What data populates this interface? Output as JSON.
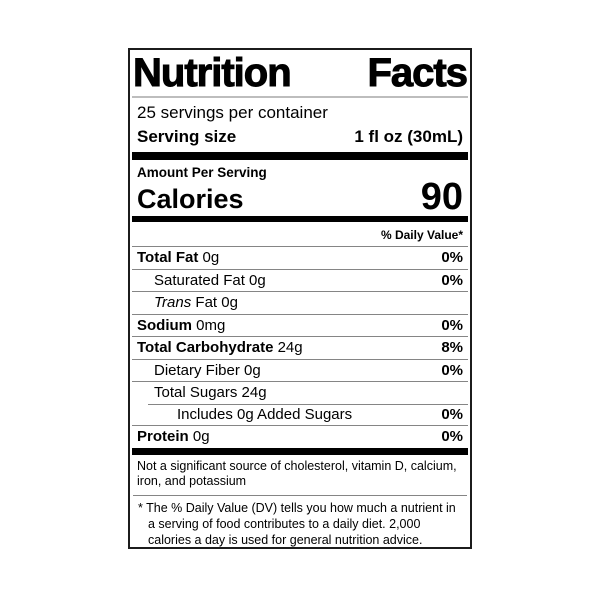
{
  "label": {
    "title": "Nutrition Facts",
    "servings_per_container": "25 servings per container",
    "serving_size_label": "Serving size",
    "serving_size_value": "1 fl oz (30mL)",
    "amount_per_serving": "Amount Per Serving",
    "calories_label": "Calories",
    "calories_value": "90",
    "daily_value_header": "% Daily Value*",
    "not_significant": "Not a significant source of cholesterol, vitamin D, calcium, iron, and potassium",
    "footnote_marker": "*",
    "footnote_text": "The % Daily Value (DV) tells you how much a nutrient in a serving of food contributes to a daily diet. 2,000 calories a day is used for general nutrition advice.",
    "colors": {
      "text": "#000000",
      "bar": "#000000",
      "separator": "#858585",
      "border": "#1c1c1c",
      "background": "#ffffff"
    }
  },
  "nutrients": [
    {
      "bold": "Total Fat",
      "italic": "",
      "text": " 0g",
      "pct": "0%",
      "indent": 0,
      "sep_indent": false
    },
    {
      "bold": "",
      "italic": "",
      "text": "Saturated Fat 0g",
      "pct": "0%",
      "indent": 1,
      "sep_indent": false
    },
    {
      "bold": "",
      "italic": "Trans",
      "text": " Fat 0g",
      "pct": "",
      "indent": 1,
      "sep_indent": false
    },
    {
      "bold": "Sodium",
      "italic": "",
      "text": " 0mg",
      "pct": "0%",
      "indent": 0,
      "sep_indent": false
    },
    {
      "bold": "Total Carbohydrate",
      "italic": "",
      "text": " 24g",
      "pct": "8%",
      "indent": 0,
      "sep_indent": false
    },
    {
      "bold": "",
      "italic": "",
      "text": "Dietary Fiber 0g",
      "pct": "0%",
      "indent": 1,
      "sep_indent": false
    },
    {
      "bold": "",
      "italic": "",
      "text": "Total Sugars 24g",
      "pct": "",
      "indent": 1,
      "sep_indent": false
    },
    {
      "bold": "",
      "italic": "",
      "text": "Includes 0g Added Sugars",
      "pct": "0%",
      "indent": 2,
      "sep_indent": true
    },
    {
      "bold": "Protein",
      "italic": "",
      "text": " 0g",
      "pct": "0%",
      "indent": 0,
      "sep_indent": false
    }
  ]
}
